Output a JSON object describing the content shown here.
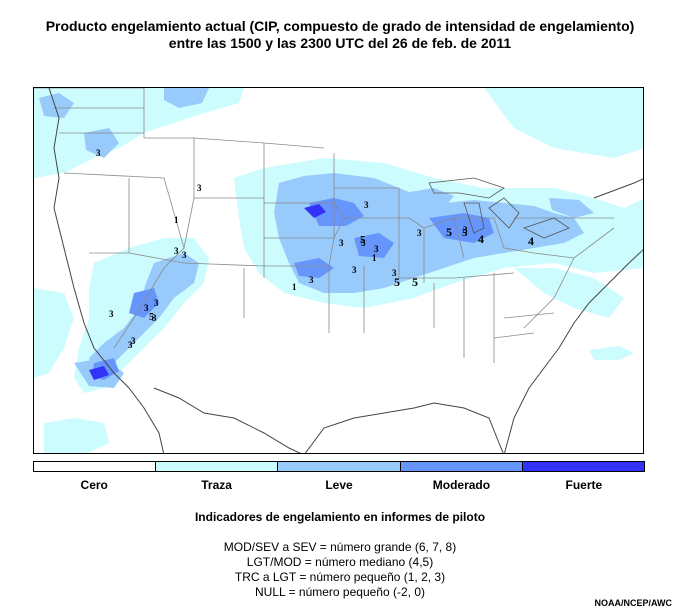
{
  "title": {
    "line1": "Producto engelamiento actual (CIP, compuesto de grado de intensidad de engelamiento)",
    "line2": "entre las 1500 y las 2300 UTC del 26 de feb. de 2011"
  },
  "legend": {
    "items": [
      {
        "label": "Cero",
        "color": "#ffffff"
      },
      {
        "label": "Traza",
        "color": "#ccfcfe"
      },
      {
        "label": "Leve",
        "color": "#98cafc"
      },
      {
        "label": "Moderado",
        "color": "#6696fc"
      },
      {
        "label": "Fuerte",
        "color": "#3232f8"
      }
    ]
  },
  "pirep": {
    "heading": "Indicadores de engelamiento en informes de piloto",
    "lines": [
      "MOD/SEV a SEV = número grande (6, 7, 8)",
      "LGT/MOD = número mediano (4,5)",
      "TRC a LGT = número pequeño (1, 2, 3)",
      "NULL = número pequeño (-2, 0)"
    ]
  },
  "map_markers": [
    "3",
    "3",
    "1",
    "3",
    "3",
    "3",
    "3",
    "1",
    "3",
    "3",
    "5",
    "5",
    "5",
    "3",
    "1",
    "3",
    "3",
    "3",
    "3",
    "5",
    "5",
    "5",
    "4",
    "4",
    "3",
    "3",
    "3",
    "5",
    "3",
    "3"
  ],
  "credit": "NOAA/NCEP/AWC"
}
